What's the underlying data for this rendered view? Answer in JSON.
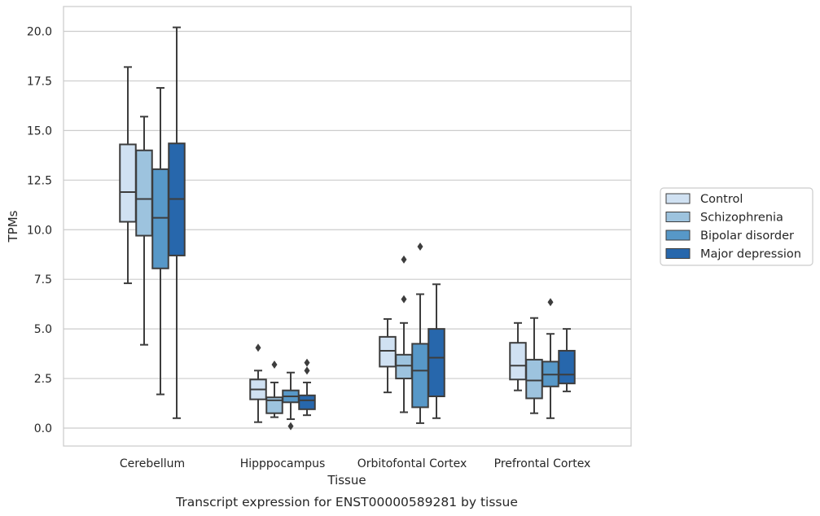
{
  "chart_data": {
    "type": "boxplot",
    "caption": "Transcript expression for ENST00000589281 by tissue",
    "xlabel": "Tissue",
    "ylabel": "TPMs",
    "ylim": [
      -0.9,
      21.2
    ],
    "yticks": [
      0.0,
      2.5,
      5.0,
      7.5,
      10.0,
      12.5,
      15.0,
      17.5,
      20.0
    ],
    "ytick_labels": [
      "0.0",
      "2.5",
      "5.0",
      "7.5",
      "10.0",
      "12.5",
      "15.0",
      "17.5",
      "20.0"
    ],
    "grid": "horizontal",
    "legend_position": "right",
    "categories": [
      "Cerebellum",
      "Hipppocampus",
      "Orbitofontal Cortex",
      "Prefrontal Cortex"
    ],
    "series": [
      {
        "name": "Control",
        "color": "#d0e1f2",
        "boxes": [
          {
            "whislo": 7.3,
            "q1": 10.4,
            "med": 11.9,
            "q3": 14.3,
            "whishi": 18.2,
            "fliers": []
          },
          {
            "whislo": 0.3,
            "q1": 1.45,
            "med": 1.95,
            "q3": 2.45,
            "whishi": 2.9,
            "fliers": [
              4.05
            ]
          },
          {
            "whislo": 1.8,
            "q1": 3.1,
            "med": 3.9,
            "q3": 4.6,
            "whishi": 5.5,
            "fliers": []
          },
          {
            "whislo": 1.9,
            "q1": 2.45,
            "med": 3.15,
            "q3": 4.3,
            "whishi": 5.3,
            "fliers": []
          }
        ]
      },
      {
        "name": "Schizophrenia",
        "color": "#9dc3de",
        "boxes": [
          {
            "whislo": 4.2,
            "q1": 9.7,
            "med": 11.55,
            "q3": 14.0,
            "whishi": 15.7,
            "fliers": []
          },
          {
            "whislo": 0.55,
            "q1": 0.75,
            "med": 1.4,
            "q3": 1.55,
            "whishi": 2.3,
            "fliers": [
              3.2
            ]
          },
          {
            "whislo": 0.8,
            "q1": 2.5,
            "med": 3.15,
            "q3": 3.7,
            "whishi": 5.3,
            "fliers": [
              6.5,
              8.5
            ]
          },
          {
            "whislo": 0.75,
            "q1": 1.5,
            "med": 2.4,
            "q3": 3.45,
            "whishi": 5.55,
            "fliers": []
          }
        ]
      },
      {
        "name": "Bipolar disorder",
        "color": "#5798c8",
        "boxes": [
          {
            "whislo": 1.7,
            "q1": 8.05,
            "med": 10.6,
            "q3": 13.05,
            "whishi": 17.15,
            "fliers": []
          },
          {
            "whislo": 0.45,
            "q1": 1.3,
            "med": 1.6,
            "q3": 1.9,
            "whishi": 2.8,
            "fliers": [
              0.1
            ]
          },
          {
            "whislo": 0.25,
            "q1": 1.05,
            "med": 2.9,
            "q3": 4.25,
            "whishi": 6.75,
            "fliers": [
              9.15
            ]
          },
          {
            "whislo": 0.5,
            "q1": 2.1,
            "med": 2.7,
            "q3": 3.35,
            "whishi": 4.75,
            "fliers": [
              6.35
            ]
          }
        ]
      },
      {
        "name": "Major depression",
        "color": "#2767ac",
        "boxes": [
          {
            "whislo": 0.5,
            "q1": 8.7,
            "med": 11.55,
            "q3": 14.35,
            "whishi": 20.2,
            "fliers": []
          },
          {
            "whislo": 0.65,
            "q1": 0.95,
            "med": 1.4,
            "q3": 1.65,
            "whishi": 2.3,
            "fliers": [
              2.9,
              3.3
            ]
          },
          {
            "whislo": 0.5,
            "q1": 1.6,
            "med": 3.55,
            "q3": 5.0,
            "whishi": 7.25,
            "fliers": []
          },
          {
            "whislo": 1.85,
            "q1": 2.25,
            "med": 2.7,
            "q3": 3.9,
            "whishi": 5.0,
            "fliers": []
          }
        ]
      }
    ]
  }
}
